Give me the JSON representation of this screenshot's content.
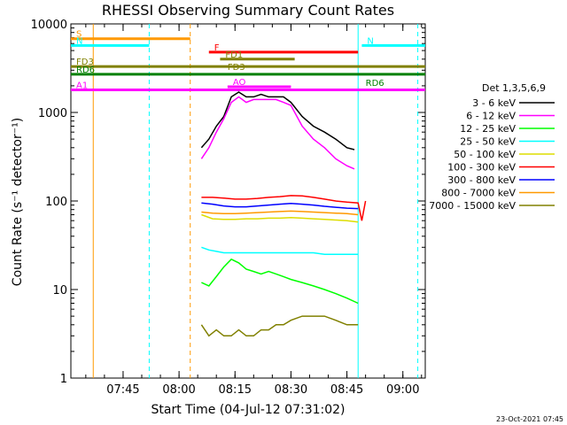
{
  "chart_data": {
    "type": "line",
    "title": "RHESSI Observing Summary Count Rates",
    "xlabel": "Start Time (04-Jul-12 07:31:02)",
    "ylabel": "Count Rate (s⁻¹ detector⁻¹)",
    "y_scale": "log",
    "ylim": [
      1,
      10000
    ],
    "xlim": [
      "07:31",
      "09:06"
    ],
    "y_ticks": [
      {
        "value": 1,
        "label": "1"
      },
      {
        "value": 10,
        "label": "10"
      },
      {
        "value": 100,
        "label": "100"
      },
      {
        "value": 1000,
        "label": "1000"
      },
      {
        "value": 10000,
        "label": "10000"
      }
    ],
    "x_ticks": [
      {
        "value": "07:45",
        "label": "07:45"
      },
      {
        "value": "08:00",
        "label": "08:00"
      },
      {
        "value": "08:15",
        "label": "08:15"
      },
      {
        "value": "08:30",
        "label": "08:30"
      },
      {
        "value": "08:45",
        "label": "08:45"
      },
      {
        "value": "09:00",
        "label": "09:00"
      }
    ],
    "legend_title": "Det 1,3,5,6,9",
    "legend_position": "right",
    "series": [
      {
        "name": "3 - 6 keV",
        "color": "#000000",
        "points": [
          [
            "08:06",
            400
          ],
          [
            "08:08",
            500
          ],
          [
            "08:10",
            700
          ],
          [
            "08:12",
            900
          ],
          [
            "08:14",
            1500
          ],
          [
            "08:16",
            1700
          ],
          [
            "08:18",
            1500
          ],
          [
            "08:20",
            1500
          ],
          [
            "08:22",
            1600
          ],
          [
            "08:24",
            1500
          ],
          [
            "08:26",
            1500
          ],
          [
            "08:28",
            1500
          ],
          [
            "08:30",
            1300
          ],
          [
            "08:33",
            900
          ],
          [
            "08:36",
            700
          ],
          [
            "08:39",
            600
          ],
          [
            "08:42",
            500
          ],
          [
            "08:45",
            400
          ],
          [
            "08:47",
            380
          ]
        ]
      },
      {
        "name": "6 - 12 keV",
        "color": "#ff00ff",
        "points": [
          [
            "08:06",
            300
          ],
          [
            "08:08",
            400
          ],
          [
            "08:10",
            600
          ],
          [
            "08:12",
            850
          ],
          [
            "08:14",
            1300
          ],
          [
            "08:16",
            1500
          ],
          [
            "08:18",
            1300
          ],
          [
            "08:20",
            1400
          ],
          [
            "08:22",
            1400
          ],
          [
            "08:24",
            1400
          ],
          [
            "08:26",
            1400
          ],
          [
            "08:28",
            1300
          ],
          [
            "08:30",
            1200
          ],
          [
            "08:33",
            700
          ],
          [
            "08:36",
            500
          ],
          [
            "08:39",
            400
          ],
          [
            "08:42",
            300
          ],
          [
            "08:45",
            250
          ],
          [
            "08:47",
            230
          ]
        ]
      },
      {
        "name": "12 - 25 keV",
        "color": "#00ff00",
        "points": [
          [
            "08:06",
            12
          ],
          [
            "08:08",
            11
          ],
          [
            "08:10",
            14
          ],
          [
            "08:12",
            18
          ],
          [
            "08:14",
            22
          ],
          [
            "08:16",
            20
          ],
          [
            "08:18",
            17
          ],
          [
            "08:20",
            16
          ],
          [
            "08:22",
            15
          ],
          [
            "08:24",
            16
          ],
          [
            "08:26",
            15
          ],
          [
            "08:28",
            14
          ],
          [
            "08:30",
            13
          ],
          [
            "08:33",
            12
          ],
          [
            "08:36",
            11
          ],
          [
            "08:39",
            10
          ],
          [
            "08:42",
            9
          ],
          [
            "08:45",
            8
          ],
          [
            "08:48",
            7
          ]
        ]
      },
      {
        "name": "25 - 50 keV",
        "color": "#00ffff",
        "points": [
          [
            "08:06",
            30
          ],
          [
            "08:08",
            28
          ],
          [
            "08:10",
            27
          ],
          [
            "08:12",
            26
          ],
          [
            "08:14",
            26
          ],
          [
            "08:16",
            26
          ],
          [
            "08:18",
            26
          ],
          [
            "08:20",
            26
          ],
          [
            "08:22",
            26
          ],
          [
            "08:24",
            26
          ],
          [
            "08:26",
            26
          ],
          [
            "08:28",
            26
          ],
          [
            "08:30",
            26
          ],
          [
            "08:33",
            26
          ],
          [
            "08:36",
            26
          ],
          [
            "08:39",
            25
          ],
          [
            "08:42",
            25
          ],
          [
            "08:45",
            25
          ],
          [
            "08:48",
            25
          ]
        ]
      },
      {
        "name": "50 - 100 keV",
        "color": "#dddd00",
        "points": [
          [
            "08:06",
            70
          ],
          [
            "08:09",
            63
          ],
          [
            "08:12",
            62
          ],
          [
            "08:15",
            62
          ],
          [
            "08:18",
            63
          ],
          [
            "08:21",
            63
          ],
          [
            "08:24",
            64
          ],
          [
            "08:27",
            64
          ],
          [
            "08:30",
            65
          ],
          [
            "08:33",
            64
          ],
          [
            "08:36",
            63
          ],
          [
            "08:39",
            62
          ],
          [
            "08:42",
            61
          ],
          [
            "08:45",
            60
          ],
          [
            "08:48",
            58
          ]
        ]
      },
      {
        "name": "100 - 300 keV",
        "color": "#ff0000",
        "points": [
          [
            "08:06",
            110
          ],
          [
            "08:09",
            110
          ],
          [
            "08:12",
            108
          ],
          [
            "08:15",
            105
          ],
          [
            "08:18",
            105
          ],
          [
            "08:21",
            107
          ],
          [
            "08:24",
            110
          ],
          [
            "08:27",
            112
          ],
          [
            "08:30",
            115
          ],
          [
            "08:33",
            114
          ],
          [
            "08:36",
            110
          ],
          [
            "08:39",
            105
          ],
          [
            "08:42",
            100
          ],
          [
            "08:45",
            97
          ],
          [
            "08:48",
            95
          ],
          [
            "08:49",
            60
          ],
          [
            "08:50",
            100
          ]
        ]
      },
      {
        "name": "300 - 800 keV",
        "color": "#0000ff",
        "points": [
          [
            "08:06",
            95
          ],
          [
            "08:09",
            92
          ],
          [
            "08:12",
            88
          ],
          [
            "08:15",
            86
          ],
          [
            "08:18",
            86
          ],
          [
            "08:21",
            88
          ],
          [
            "08:24",
            90
          ],
          [
            "08:27",
            92
          ],
          [
            "08:30",
            94
          ],
          [
            "08:33",
            92
          ],
          [
            "08:36",
            90
          ],
          [
            "08:39",
            87
          ],
          [
            "08:42",
            85
          ],
          [
            "08:45",
            83
          ],
          [
            "08:48",
            82
          ]
        ]
      },
      {
        "name": "800 - 7000 keV",
        "color": "#ff9900",
        "points": [
          [
            "08:06",
            75
          ],
          [
            "08:09",
            73
          ],
          [
            "08:12",
            72
          ],
          [
            "08:15",
            72
          ],
          [
            "08:18",
            73
          ],
          [
            "08:21",
            74
          ],
          [
            "08:24",
            75
          ],
          [
            "08:27",
            76
          ],
          [
            "08:30",
            77
          ],
          [
            "08:33",
            76
          ],
          [
            "08:36",
            75
          ],
          [
            "08:39",
            74
          ],
          [
            "08:42",
            73
          ],
          [
            "08:45",
            72
          ],
          [
            "08:48",
            70
          ]
        ]
      },
      {
        "name": "7000 - 15000 keV",
        "color": "#808000",
        "points": [
          [
            "08:06",
            4
          ],
          [
            "08:08",
            3
          ],
          [
            "08:10",
            3.5
          ],
          [
            "08:12",
            3
          ],
          [
            "08:14",
            3
          ],
          [
            "08:16",
            3.5
          ],
          [
            "08:18",
            3
          ],
          [
            "08:20",
            3
          ],
          [
            "08:22",
            3.5
          ],
          [
            "08:24",
            3.5
          ],
          [
            "08:26",
            4
          ],
          [
            "08:28",
            4
          ],
          [
            "08:30",
            4.5
          ],
          [
            "08:33",
            5
          ],
          [
            "08:36",
            5
          ],
          [
            "08:39",
            5
          ],
          [
            "08:42",
            4.5
          ],
          [
            "08:45",
            4
          ],
          [
            "08:48",
            4
          ]
        ]
      }
    ],
    "flag_bars": [
      {
        "label": "S",
        "color": "#ff9900",
        "start": "07:31",
        "end": "08:03",
        "y": 6800
      },
      {
        "label": "N",
        "color": "#00ffff",
        "start": "07:31",
        "end": "07:52",
        "y": 5700
      },
      {
        "label": "N",
        "color": "#00ffff",
        "start": "08:49",
        "end": "09:06",
        "y": 5700
      },
      {
        "label": "F",
        "color": "#ff0000",
        "start": "08:08",
        "end": "08:48",
        "y": 4800
      },
      {
        "label": "FD1",
        "color": "#808000",
        "start": "08:11",
        "end": "08:31",
        "y": 4000
      },
      {
        "label": "FD3",
        "color": "#808000",
        "start": "07:31",
        "end": "09:06",
        "y": 3300
      },
      {
        "label": "RD6",
        "color": "#008000",
        "start": "07:31",
        "end": "09:06",
        "y": 2700
      },
      {
        "label": "AO",
        "color": "#ff00ff",
        "start": "08:13",
        "end": "08:30",
        "y": 1950
      },
      {
        "label": "A1",
        "color": "#ff00ff",
        "start": "07:31",
        "end": "09:06",
        "y": 1800
      }
    ],
    "extra_labels": [
      {
        "text": "FD3",
        "color": "#808000",
        "x": "08:13",
        "y": 3300
      },
      {
        "text": "RD6",
        "color": "#008000",
        "x": "08:50",
        "y": 2200
      }
    ],
    "vertical_lines": [
      {
        "x": "07:37",
        "color": "#ff9900",
        "style": "solid"
      },
      {
        "x": "07:52",
        "color": "#00ffff",
        "style": "dashed"
      },
      {
        "x": "08:03",
        "color": "#ff9900",
        "style": "dashed"
      },
      {
        "x": "08:48",
        "color": "#00ffff",
        "style": "solid"
      },
      {
        "x": "09:04",
        "color": "#00ffff",
        "style": "dashed"
      }
    ],
    "footer_stamp": "23-Oct-2021 07:45"
  }
}
